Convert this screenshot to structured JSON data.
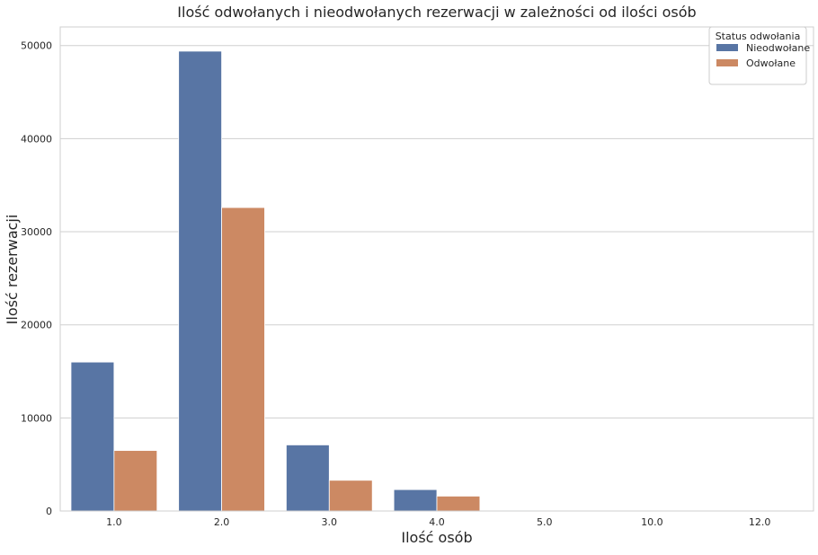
{
  "chart_data": {
    "type": "bar",
    "title": "Ilość odwołanych i nieodwołanych rezerwacji w zależności od ilości osób",
    "xlabel": "Ilość osób",
    "ylabel": "Ilość rezerwacji",
    "categories": [
      "1.0",
      "2.0",
      "3.0",
      "4.0",
      "5.0",
      "10.0",
      "12.0"
    ],
    "series": [
      {
        "name": "Nieodwołane",
        "color": "#5875a4",
        "values": [
          16000,
          49400,
          7100,
          2300,
          50,
          10,
          5
        ]
      },
      {
        "name": "Odwołane",
        "color": "#cc8963",
        "values": [
          6500,
          32600,
          3300,
          1600,
          20,
          5,
          2
        ]
      }
    ],
    "ylim": [
      0,
      52000
    ],
    "yticks": [
      0,
      10000,
      20000,
      30000,
      40000,
      50000
    ],
    "grid": "horizontal",
    "legend": {
      "title": "Status odwołania",
      "placement": "top-right"
    }
  }
}
